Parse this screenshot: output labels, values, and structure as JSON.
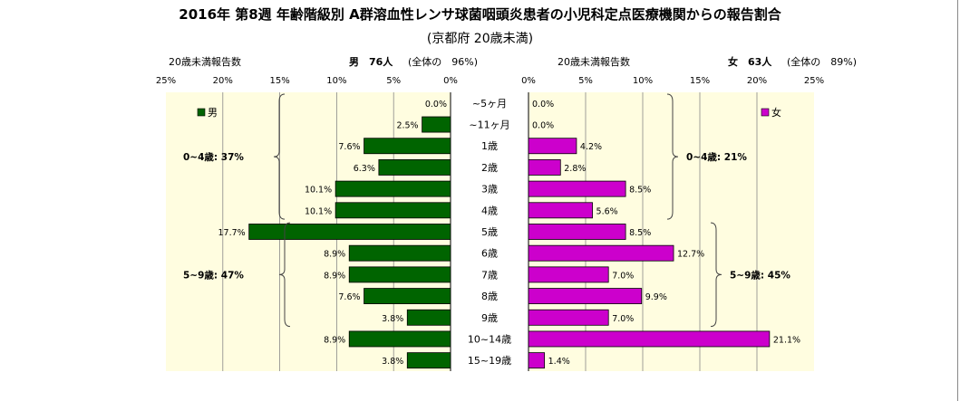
{
  "chart_data": {
    "type": "bar",
    "title": "2016年 第8週 年齢階級別 A群溶血性レンサ球菌咽頭炎患者の小児科定点医療機関からの報告割合",
    "subtitle": "(京都府 20歳未満)",
    "categories": [
      "~5ヶ月",
      "~11ヶ月",
      "1歳",
      "2歳",
      "3歳",
      "4歳",
      "5歳",
      "6歳",
      "7歳",
      "8歳",
      "9歳",
      "10~14歳",
      "15~19歳"
    ],
    "xlim": [
      0,
      25
    ],
    "xticks": [
      "0%",
      "5%",
      "10%",
      "15%",
      "20%",
      "25%"
    ],
    "left_panel": {
      "header_label": "20歳未満報告数",
      "sex_count": "男　76人",
      "coverage": "(全体の　96%)",
      "legend": "男",
      "color": "#006400",
      "series": [
        {
          "name": "男",
          "values": [
            0.0,
            2.5,
            7.6,
            6.3,
            10.1,
            10.1,
            17.7,
            8.9,
            8.9,
            7.6,
            3.8,
            8.9,
            3.8
          ]
        }
      ],
      "labels": [
        "0.0%",
        "2.5%",
        "7.6%",
        "6.3%",
        "10.1%",
        "10.1%",
        "17.7%",
        "8.9%",
        "8.9%",
        "7.6%",
        "3.8%",
        "8.9%",
        "3.8%"
      ],
      "brackets": [
        {
          "label": "0~4歳: 37%",
          "from": 0,
          "to": 5
        },
        {
          "label": "5~9歳: 47%",
          "from": 6,
          "to": 10
        }
      ]
    },
    "right_panel": {
      "header_label": "20歳未満報告数",
      "sex_count": "女　63人",
      "coverage": "(全体の　89%)",
      "legend": "女",
      "color": "#cc00cc",
      "series": [
        {
          "name": "女",
          "values": [
            0.0,
            0.0,
            4.2,
            2.8,
            8.5,
            5.6,
            8.5,
            12.7,
            7.0,
            9.9,
            7.0,
            21.1,
            1.4
          ]
        }
      ],
      "labels": [
        "0.0%",
        "0.0%",
        "4.2%",
        "2.8%",
        "8.5%",
        "5.6%",
        "8.5%",
        "12.7%",
        "7.0%",
        "9.9%",
        "7.0%",
        "21.1%",
        "1.4%"
      ],
      "brackets": [
        {
          "label": "0~4歳: 21%",
          "from": 0,
          "to": 5
        },
        {
          "label": "5~9歳: 45%",
          "from": 6,
          "to": 10
        }
      ]
    },
    "plot_bg": "#fffde0",
    "grid": true
  }
}
